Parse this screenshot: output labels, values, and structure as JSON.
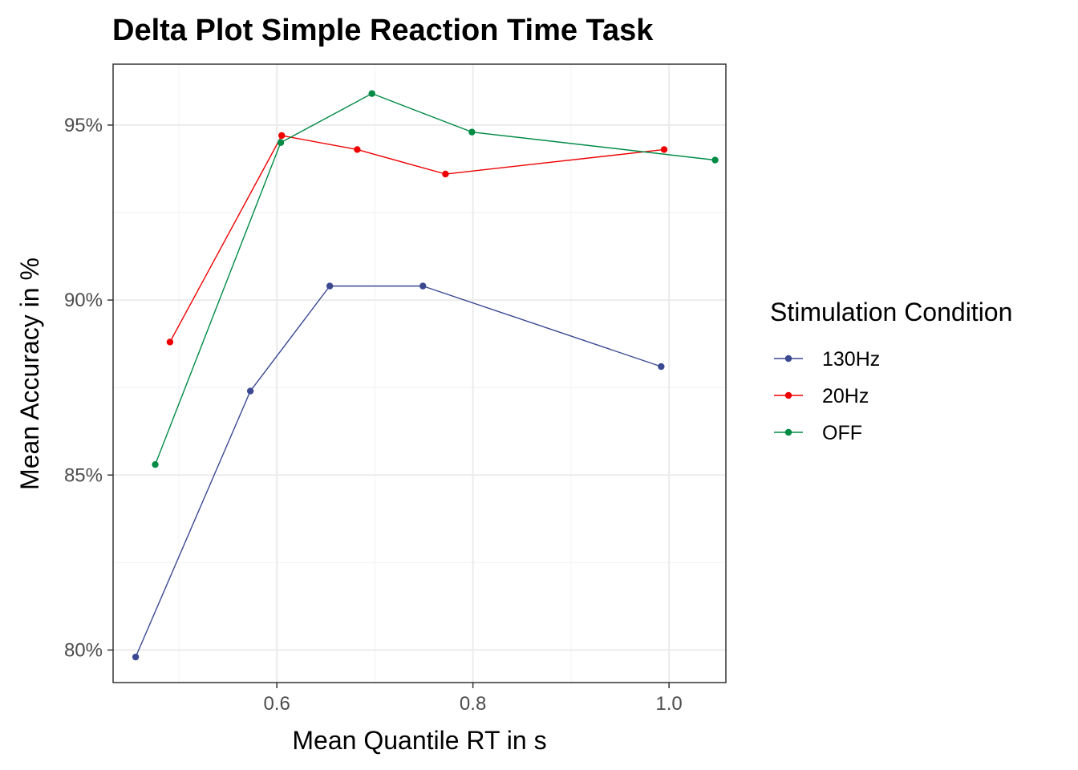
{
  "chart_data": {
    "type": "line",
    "title": "Delta Plot Simple Reaction Time Task",
    "xlabel": "Mean Quantile RT in s",
    "ylabel": "Mean Accuracy in %",
    "xlim": [
      0.433,
      1.058
    ],
    "ylim": [
      79.07,
      96.74
    ],
    "x_ticks": [
      0.6,
      0.8,
      1.0
    ],
    "x_tick_labels": [
      "0.6",
      "0.8",
      "1.0"
    ],
    "y_ticks": [
      80,
      85,
      90,
      95
    ],
    "y_tick_labels": [
      "80%",
      "85%",
      "90%",
      "95%"
    ],
    "grid": true,
    "legend": {
      "title": "Stimulation Condition",
      "position": "right"
    },
    "series": [
      {
        "name": "130Hz",
        "color": "#3B4992",
        "x": [
          0.456,
          0.573,
          0.654,
          0.749,
          0.992
        ],
        "y": [
          79.8,
          87.4,
          90.4,
          90.4,
          88.1
        ]
      },
      {
        "name": "20Hz",
        "color": "#EE0000",
        "x": [
          0.491,
          0.605,
          0.682,
          0.772,
          0.995
        ],
        "y": [
          88.8,
          94.7,
          94.3,
          93.6,
          94.3
        ]
      },
      {
        "name": "OFF",
        "color": "#008B45",
        "x": [
          0.476,
          0.604,
          0.697,
          0.799,
          1.047
        ],
        "y": [
          85.3,
          94.5,
          95.9,
          94.8,
          94.0
        ]
      }
    ]
  }
}
